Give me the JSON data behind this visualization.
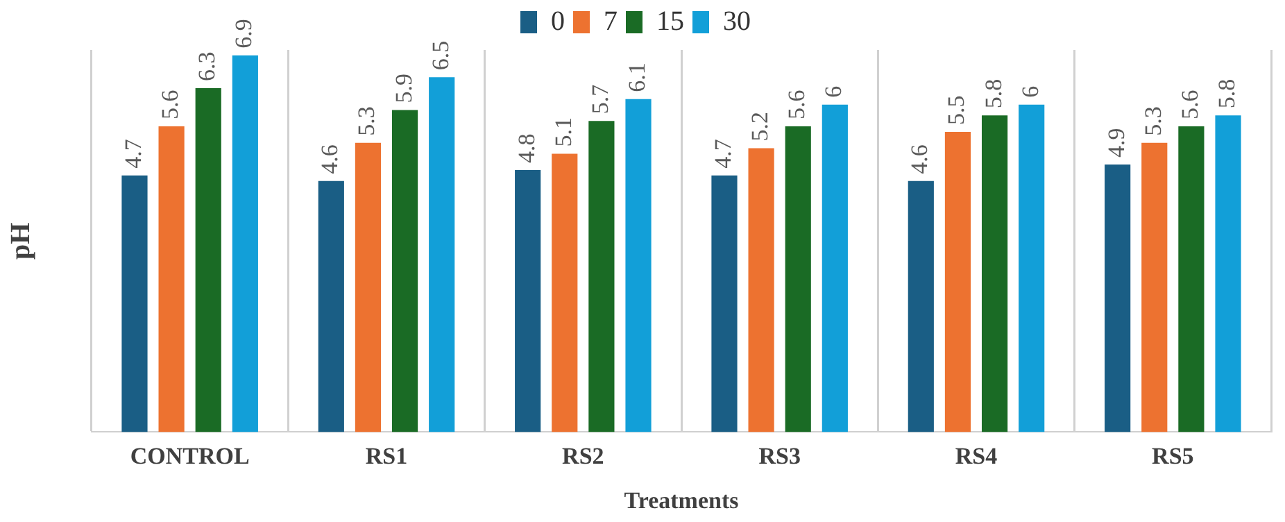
{
  "chart_data": {
    "type": "bar",
    "xlabel": "Treatments",
    "ylabel": "pH",
    "tick_labels": "x",
    "categories": [
      "CONTROL",
      "RS1",
      "RS2",
      "RS3",
      "RS4",
      "RS5"
    ],
    "series": [
      {
        "name": "0",
        "color": "#1a5e85",
        "values": [
          4.7,
          4.6,
          4.8,
          4.7,
          4.6,
          4.9
        ]
      },
      {
        "name": "7",
        "color": "#ed7230",
        "values": [
          5.6,
          5.3,
          5.1,
          5.2,
          5.5,
          5.3
        ]
      },
      {
        "name": "15",
        "color": "#1a6b25",
        "values": [
          6.3,
          5.9,
          5.7,
          5.6,
          5.8,
          5.6
        ]
      },
      {
        "name": "30",
        "color": "#129fd8",
        "values": [
          6.9,
          6.5,
          6.1,
          6,
          6,
          5.8
        ]
      }
    ],
    "data_labels": true,
    "grid": "x",
    "legend": "top"
  }
}
